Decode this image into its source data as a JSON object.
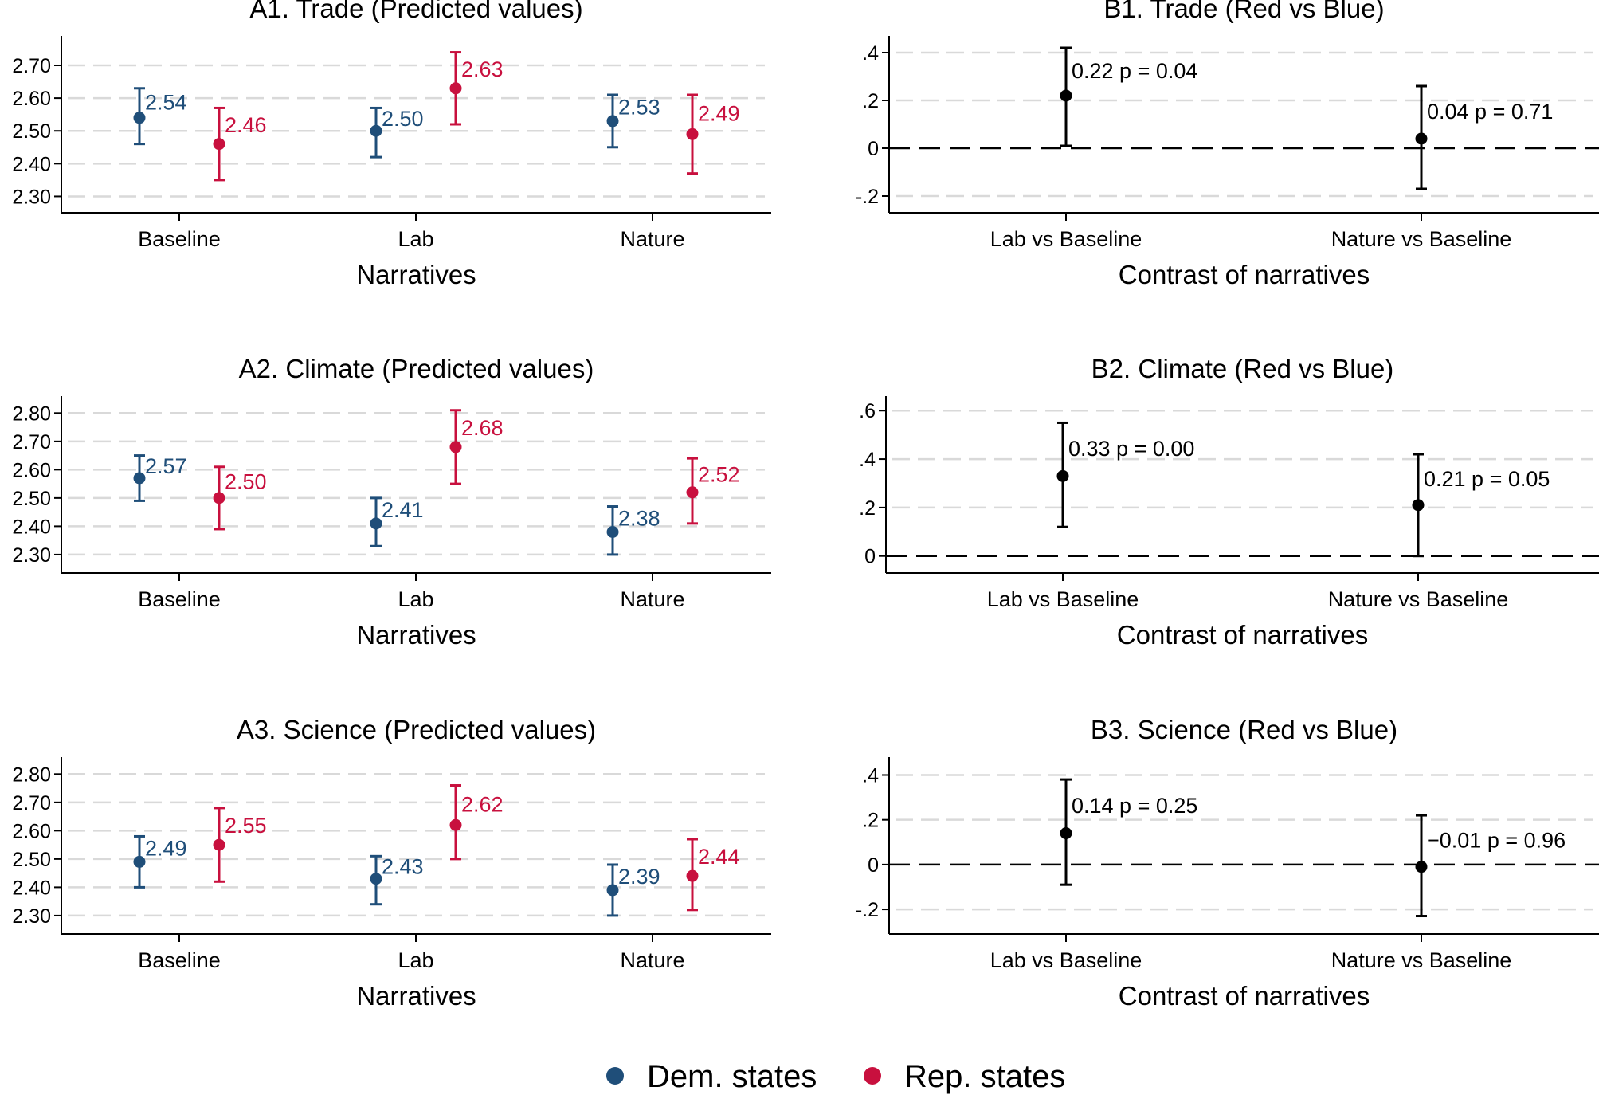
{
  "colors": {
    "dem": "#1f4e79",
    "rep": "#c8103e",
    "contrast": "#000000",
    "grid": "#d9d9d9",
    "axis": "#000000"
  },
  "legend": {
    "dem_label": "Dem. states",
    "rep_label": "Rep. states"
  },
  "chart_data": [
    {
      "id": "A1",
      "type": "scatter",
      "title": "A1. Trade (Predicted values)",
      "xlabel": "Narratives",
      "ylabel": "",
      "categories": [
        "Baseline",
        "Lab",
        "Nature"
      ],
      "yticks": [
        2.3,
        2.4,
        2.5,
        2.6,
        2.7
      ],
      "ytick_labels": [
        "2.30",
        "2.40",
        "2.50",
        "2.60",
        "2.70"
      ],
      "ylim": [
        2.25,
        2.79
      ],
      "grid": true,
      "series": [
        {
          "name": "Dem. states",
          "values": [
            2.54,
            2.5,
            2.53
          ],
          "lower": [
            2.46,
            2.42,
            2.45
          ],
          "upper": [
            2.63,
            2.57,
            2.61
          ],
          "labels": [
            "2.54",
            "2.50",
            "2.53"
          ]
        },
        {
          "name": "Rep. states",
          "values": [
            2.46,
            2.63,
            2.49
          ],
          "lower": [
            2.35,
            2.52,
            2.37
          ],
          "upper": [
            2.57,
            2.74,
            2.61
          ],
          "labels": [
            "2.46",
            "2.63",
            "2.49"
          ]
        }
      ]
    },
    {
      "id": "B1",
      "type": "scatter",
      "title": "B1. Trade (Red vs Blue)",
      "xlabel": "Contrast of narratives",
      "ylabel": "",
      "categories": [
        "Lab vs Baseline",
        "Nature vs Baseline"
      ],
      "yticks": [
        -0.2,
        0,
        0.2,
        0.4
      ],
      "ytick_labels": [
        "-.2",
        "0",
        ".2",
        ".4"
      ],
      "ylim": [
        -0.27,
        0.47
      ],
      "grid": true,
      "series": [
        {
          "name": "Red vs Blue",
          "values": [
            0.22,
            0.04
          ],
          "lower": [
            0.01,
            -0.17
          ],
          "upper": [
            0.42,
            0.26
          ],
          "labels": [
            "0.22  p =  0.04",
            "0.04  p =  0.71"
          ]
        }
      ]
    },
    {
      "id": "A2",
      "type": "scatter",
      "title": "A2. Climate (Predicted values)",
      "xlabel": "Narratives",
      "ylabel": "",
      "categories": [
        "Baseline",
        "Lab",
        "Nature"
      ],
      "yticks": [
        2.3,
        2.4,
        2.5,
        2.6,
        2.7,
        2.8
      ],
      "ytick_labels": [
        "2.30",
        "2.40",
        "2.50",
        "2.60",
        "2.70",
        "2.80"
      ],
      "ylim": [
        2.235,
        2.86
      ],
      "grid": true,
      "series": [
        {
          "name": "Dem. states",
          "values": [
            2.57,
            2.41,
            2.38
          ],
          "lower": [
            2.49,
            2.33,
            2.3
          ],
          "upper": [
            2.65,
            2.5,
            2.47
          ],
          "labels": [
            "2.57",
            "2.41",
            "2.38"
          ]
        },
        {
          "name": "Rep. states",
          "values": [
            2.5,
            2.68,
            2.52
          ],
          "lower": [
            2.39,
            2.55,
            2.41
          ],
          "upper": [
            2.61,
            2.81,
            2.64
          ],
          "labels": [
            "2.50",
            "2.68",
            "2.52"
          ]
        }
      ]
    },
    {
      "id": "B2",
      "type": "scatter",
      "title": "B2. Climate (Red vs Blue)",
      "xlabel": "Contrast of narratives",
      "ylabel": "",
      "categories": [
        "Lab vs Baseline",
        "Nature vs Baseline"
      ],
      "yticks": [
        0,
        0.2,
        0.4,
        0.6
      ],
      "ytick_labels": [
        "0",
        ".2",
        ".4",
        ".6"
      ],
      "ylim": [
        -0.07,
        0.66
      ],
      "grid": true,
      "series": [
        {
          "name": "Red vs Blue",
          "values": [
            0.33,
            0.21
          ],
          "lower": [
            0.12,
            0.0
          ],
          "upper": [
            0.55,
            0.42
          ],
          "labels": [
            "0.33  p =  0.00",
            "0.21  p =  0.05"
          ]
        }
      ]
    },
    {
      "id": "A3",
      "type": "scatter",
      "title": "A3. Science (Predicted values)",
      "xlabel": "Narratives",
      "ylabel": "",
      "categories": [
        "Baseline",
        "Lab",
        "Nature"
      ],
      "yticks": [
        2.3,
        2.4,
        2.5,
        2.6,
        2.7,
        2.8
      ],
      "ytick_labels": [
        "2.30",
        "2.40",
        "2.50",
        "2.60",
        "2.70",
        "2.80"
      ],
      "ylim": [
        2.235,
        2.86
      ],
      "grid": true,
      "series": [
        {
          "name": "Dem. states",
          "values": [
            2.49,
            2.43,
            2.39
          ],
          "lower": [
            2.4,
            2.34,
            2.3
          ],
          "upper": [
            2.58,
            2.51,
            2.48
          ],
          "labels": [
            "2.49",
            "2.43",
            "2.39"
          ]
        },
        {
          "name": "Rep. states",
          "values": [
            2.55,
            2.62,
            2.44
          ],
          "lower": [
            2.42,
            2.5,
            2.32
          ],
          "upper": [
            2.68,
            2.76,
            2.57
          ],
          "labels": [
            "2.55",
            "2.62",
            "2.44"
          ]
        }
      ]
    },
    {
      "id": "B3",
      "type": "scatter",
      "title": "B3. Science (Red vs Blue)",
      "xlabel": "Contrast of narratives",
      "ylabel": "",
      "categories": [
        "Lab vs Baseline",
        "Nature vs Baseline"
      ],
      "yticks": [
        -0.2,
        0,
        0.2,
        0.4
      ],
      "ytick_labels": [
        "-.2",
        "0",
        ".2",
        ".4"
      ],
      "ylim": [
        -0.31,
        0.48
      ],
      "grid": true,
      "series": [
        {
          "name": "Red vs Blue",
          "values": [
            0.14,
            -0.01
          ],
          "lower": [
            -0.09,
            -0.23
          ],
          "upper": [
            0.38,
            0.22
          ],
          "labels": [
            "0.14  p =  0.25",
            "−0.01  p =  0.96"
          ]
        }
      ]
    }
  ]
}
